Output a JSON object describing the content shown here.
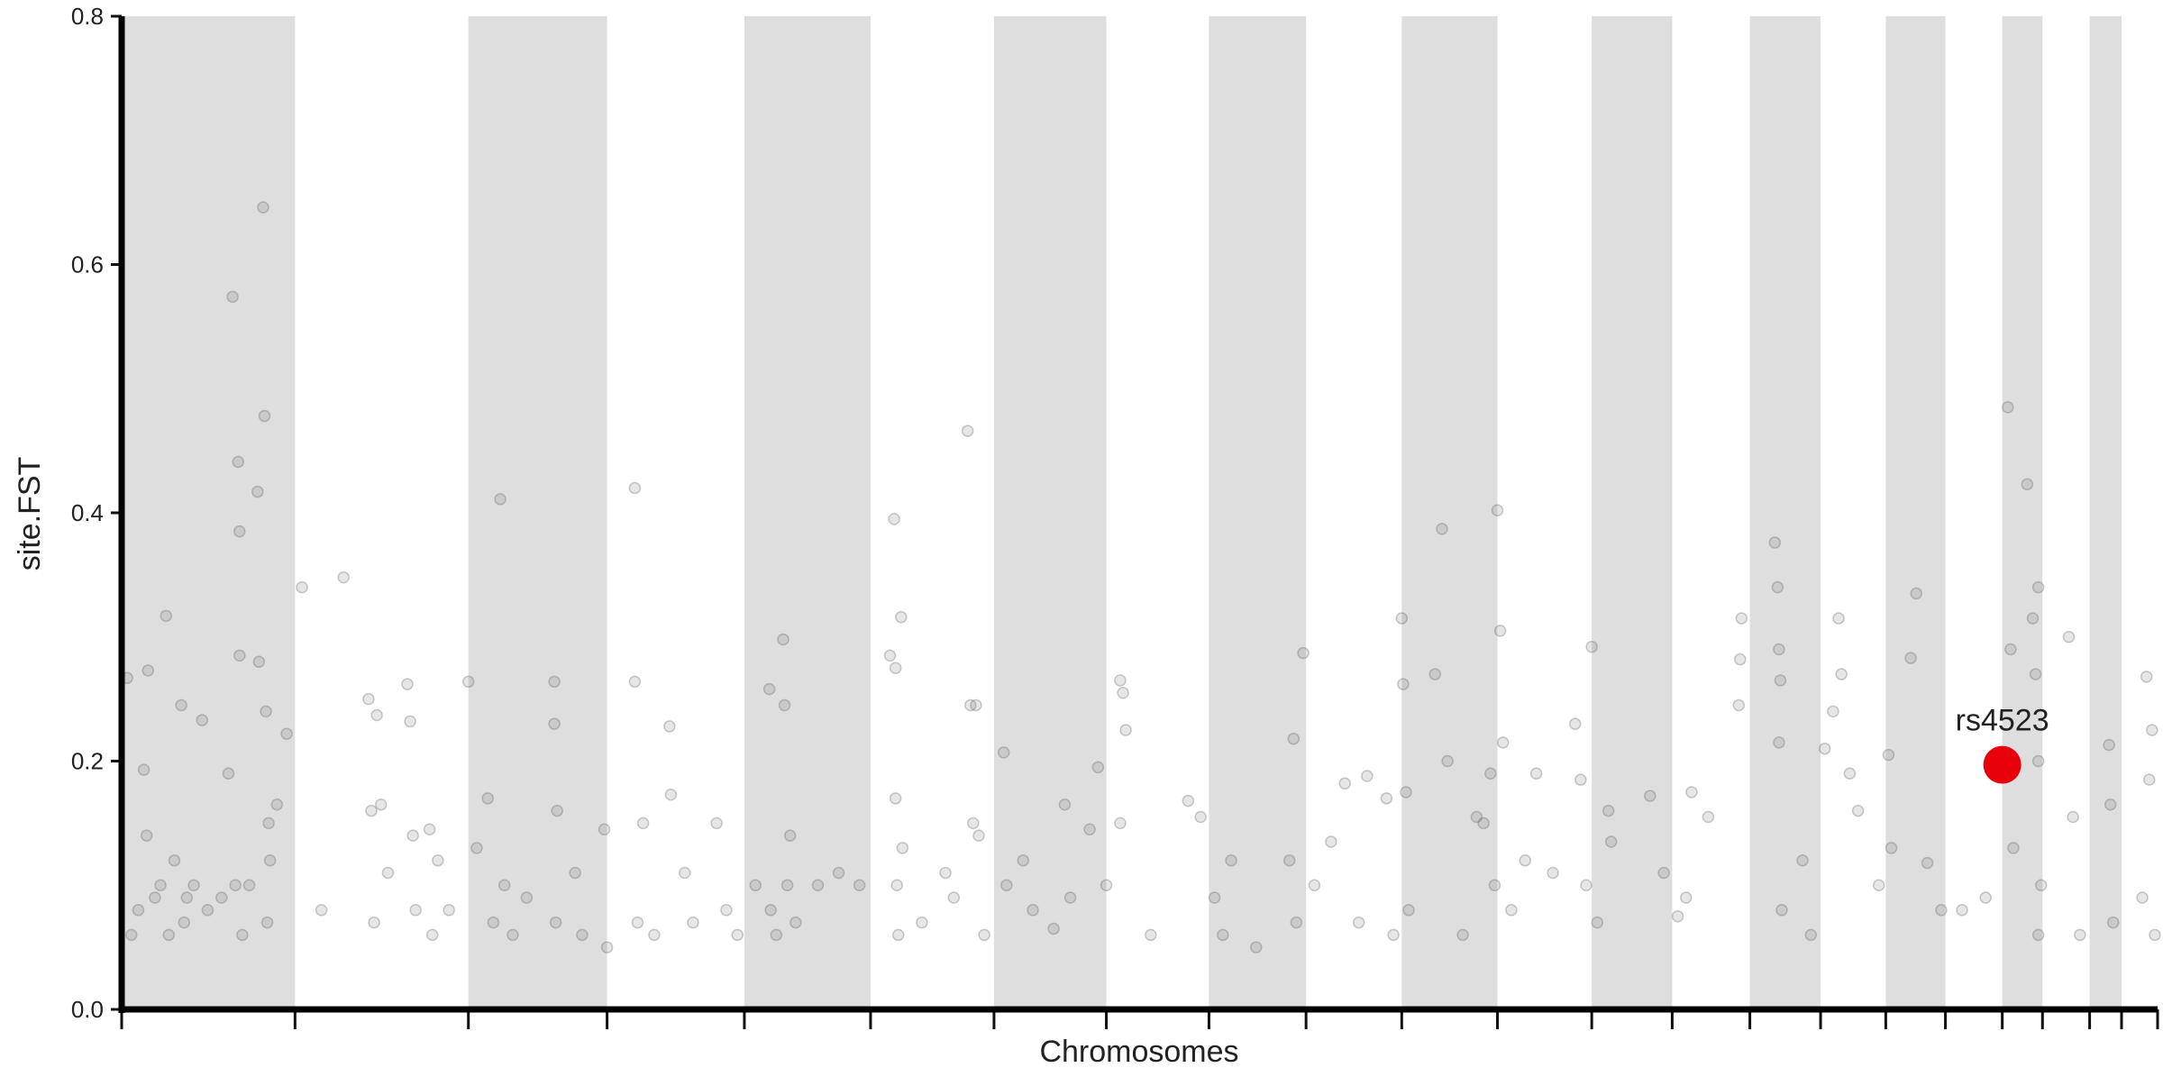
{
  "chart_data": {
    "type": "scatter",
    "xlabel": "Chromosomes",
    "ylabel": "site.FST",
    "xlim": [
      88,
      1556
    ],
    "ylim": [
      0,
      0.8
    ],
    "yticks": [
      {
        "value": 0,
        "label": "0.0"
      },
      0.2,
      0.4,
      0.6,
      0.8
    ],
    "xticks": [
      88,
      213,
      338,
      438,
      537,
      628,
      717,
      798,
      872,
      942,
      1011,
      1080,
      1148,
      1206,
      1262,
      1313,
      1360,
      1403,
      1444,
      1473,
      1507,
      1530,
      1556
    ],
    "alternate_shading": true,
    "shade_color": "#dedede",
    "series": [
      {
        "color": "#555555",
        "x": [
          92,
          95,
          100,
          104,
          106,
          107,
          112,
          116,
          120,
          122,
          126,
          131,
          133,
          135,
          140,
          146,
          150,
          160,
          165,
          168,
          170,
          172,
          173,
          173,
          175,
          180,
          186,
          187,
          190,
          191,
          192,
          193,
          194,
          195,
          200,
          207,
          218,
          232,
          248,
          266,
          268,
          270,
          272,
          275,
          280,
          294,
          296,
          298,
          300,
          310,
          312,
          316,
          324,
          338,
          344,
          352,
          356,
          361,
          364,
          370,
          380,
          400,
          400,
          402,
          401,
          415,
          420,
          436,
          438,
          458,
          458,
          460,
          464,
          472,
          483,
          484,
          494,
          500,
          517,
          524,
          532,
          545,
          555,
          556,
          560,
          565,
          566,
          568,
          570,
          574,
          590,
          605,
          620,
          642,
          645,
          646,
          646,
          647,
          648,
          650,
          651,
          665,
          682,
          688,
          698,
          700,
          702,
          704,
          706,
          710,
          724,
          726,
          738,
          745,
          760,
          768,
          772,
          786,
          792,
          798,
          808,
          810,
          812,
          808,
          830,
          857,
          866,
          876,
          882,
          888,
          906,
          930,
          933,
          935,
          940,
          948,
          960,
          970,
          980,
          986,
          1000,
          1005,
          1011,
          1012,
          1014,
          1016,
          1035,
          1040,
          1044,
          1055,
          1065,
          1070,
          1075,
          1078,
          1080,
          1082,
          1084,
          1090,
          1100,
          1108,
          1120,
          1136,
          1140,
          1144,
          1148,
          1152,
          1160,
          1162,
          1190,
          1200,
          1210,
          1216,
          1220,
          1232,
          1256,
          1255,
          1254,
          1280,
          1282,
          1283,
          1284,
          1283,
          1285,
          1300,
          1306,
          1316,
          1322,
          1326,
          1328,
          1334,
          1340,
          1355,
          1362,
          1364,
          1378,
          1382,
          1390,
          1400,
          1415,
          1432,
          1448,
          1450,
          1452,
          1462,
          1466,
          1468,
          1470,
          1470,
          1472,
          1470,
          1492,
          1495,
          1500,
          1521,
          1522,
          1524,
          1548,
          1552,
          1550,
          1545,
          1554
        ],
        "values": [
          0.267,
          0.06,
          0.08,
          0.193,
          0.14,
          0.273,
          0.09,
          0.1,
          0.317,
          0.06,
          0.12,
          0.245,
          0.07,
          0.09,
          0.1,
          0.233,
          0.08,
          0.09,
          0.19,
          0.574,
          0.1,
          0.441,
          0.385,
          0.285,
          0.06,
          0.1,
          0.417,
          0.28,
          0.646,
          0.478,
          0.24,
          0.07,
          0.15,
          0.12,
          0.165,
          0.222,
          0.34,
          0.08,
          0.348,
          0.25,
          0.16,
          0.07,
          0.237,
          0.165,
          0.11,
          0.262,
          0.232,
          0.14,
          0.08,
          0.145,
          0.06,
          0.12,
          0.08,
          0.264,
          0.13,
          0.17,
          0.07,
          0.411,
          0.1,
          0.06,
          0.09,
          0.264,
          0.23,
          0.16,
          0.07,
          0.11,
          0.06,
          0.145,
          0.05,
          0.42,
          0.264,
          0.07,
          0.15,
          0.06,
          0.228,
          0.173,
          0.11,
          0.07,
          0.15,
          0.08,
          0.06,
          0.1,
          0.258,
          0.08,
          0.06,
          0.298,
          0.245,
          0.1,
          0.14,
          0.07,
          0.1,
          0.11,
          0.1,
          0.285,
          0.395,
          0.275,
          0.17,
          0.1,
          0.06,
          0.316,
          0.13,
          0.07,
          0.11,
          0.09,
          0.466,
          0.245,
          0.15,
          0.245,
          0.14,
          0.06,
          0.207,
          0.1,
          0.12,
          0.08,
          0.065,
          0.165,
          0.09,
          0.145,
          0.195,
          0.1,
          0.265,
          0.255,
          0.225,
          0.15,
          0.06,
          0.168,
          0.155,
          0.09,
          0.06,
          0.12,
          0.05,
          0.12,
          0.218,
          0.07,
          0.287,
          0.1,
          0.135,
          0.182,
          0.07,
          0.188,
          0.17,
          0.06,
          0.315,
          0.262,
          0.175,
          0.08,
          0.27,
          0.387,
          0.2,
          0.06,
          0.155,
          0.15,
          0.19,
          0.1,
          0.402,
          0.305,
          0.215,
          0.08,
          0.12,
          0.19,
          0.11,
          0.23,
          0.185,
          0.1,
          0.292,
          0.07,
          0.16,
          0.135,
          0.172,
          0.11,
          0.075,
          0.09,
          0.175,
          0.155,
          0.315,
          0.282,
          0.245,
          0.376,
          0.34,
          0.29,
          0.265,
          0.215,
          0.08,
          0.12,
          0.06,
          0.21,
          0.24,
          0.315,
          0.27,
          0.19,
          0.16,
          0.1,
          0.205,
          0.13,
          0.283,
          0.335,
          0.118,
          0.08,
          0.08,
          0.09,
          0.485,
          0.29,
          0.13,
          0.423,
          0.315,
          0.27,
          0.34,
          0.2,
          0.1,
          0.06,
          0.3,
          0.155,
          0.06,
          0.213,
          0.165,
          0.07,
          0.268,
          0.225,
          0.185,
          0.09,
          0.06
        ]
      },
      {
        "color": "#e8000b",
        "x": [
          1444
        ],
        "values": [
          0.197
        ],
        "label": "rs4523",
        "highlight": true
      }
    ]
  }
}
